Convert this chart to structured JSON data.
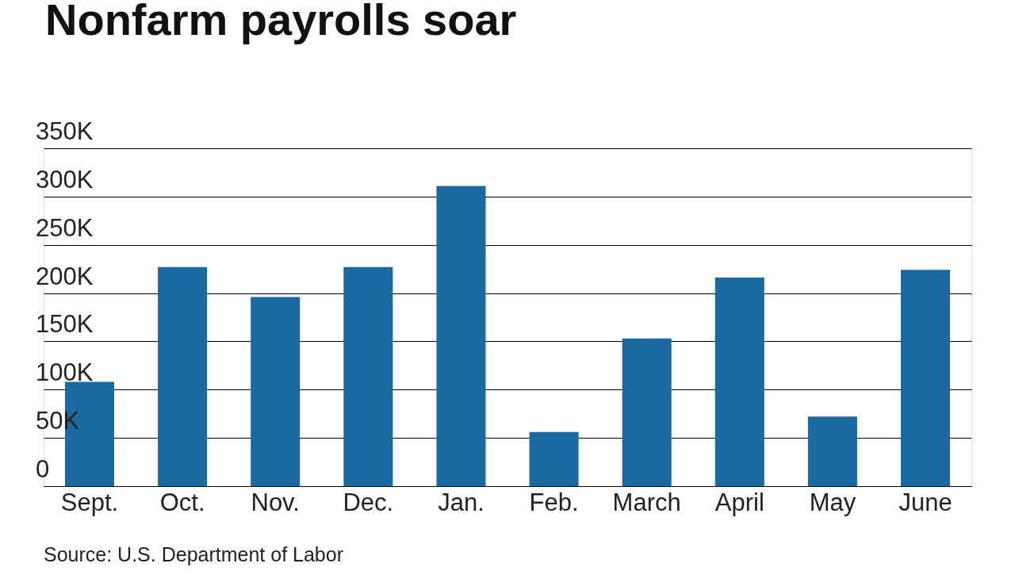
{
  "chart_data": {
    "type": "bar",
    "title": "Nonfarm payrolls soar",
    "categories": [
      "Sept.",
      "Oct.",
      "Nov.",
      "Dec.",
      "Jan.",
      "Feb.",
      "March",
      "April",
      "May",
      "June"
    ],
    "values": [
      108000,
      227000,
      196000,
      227000,
      311000,
      56000,
      153000,
      216000,
      72000,
      224000
    ],
    "color": "#1b69a1",
    "ylim": [
      0,
      350000
    ],
    "yticks": [
      0,
      {
        "value": 50000,
        "label": "50K"
      },
      {
        "value": 100000,
        "label": "100K"
      },
      {
        "value": 150000,
        "label": "150K"
      },
      {
        "value": 200000,
        "label": "200K"
      },
      {
        "value": 250000,
        "label": "250K"
      },
      {
        "value": 300000,
        "label": "300K"
      },
      {
        "value": 350000,
        "label": "350K"
      }
    ],
    "grid": "y",
    "annotations": [
      "Source: U.S. Department of Labor"
    ]
  }
}
